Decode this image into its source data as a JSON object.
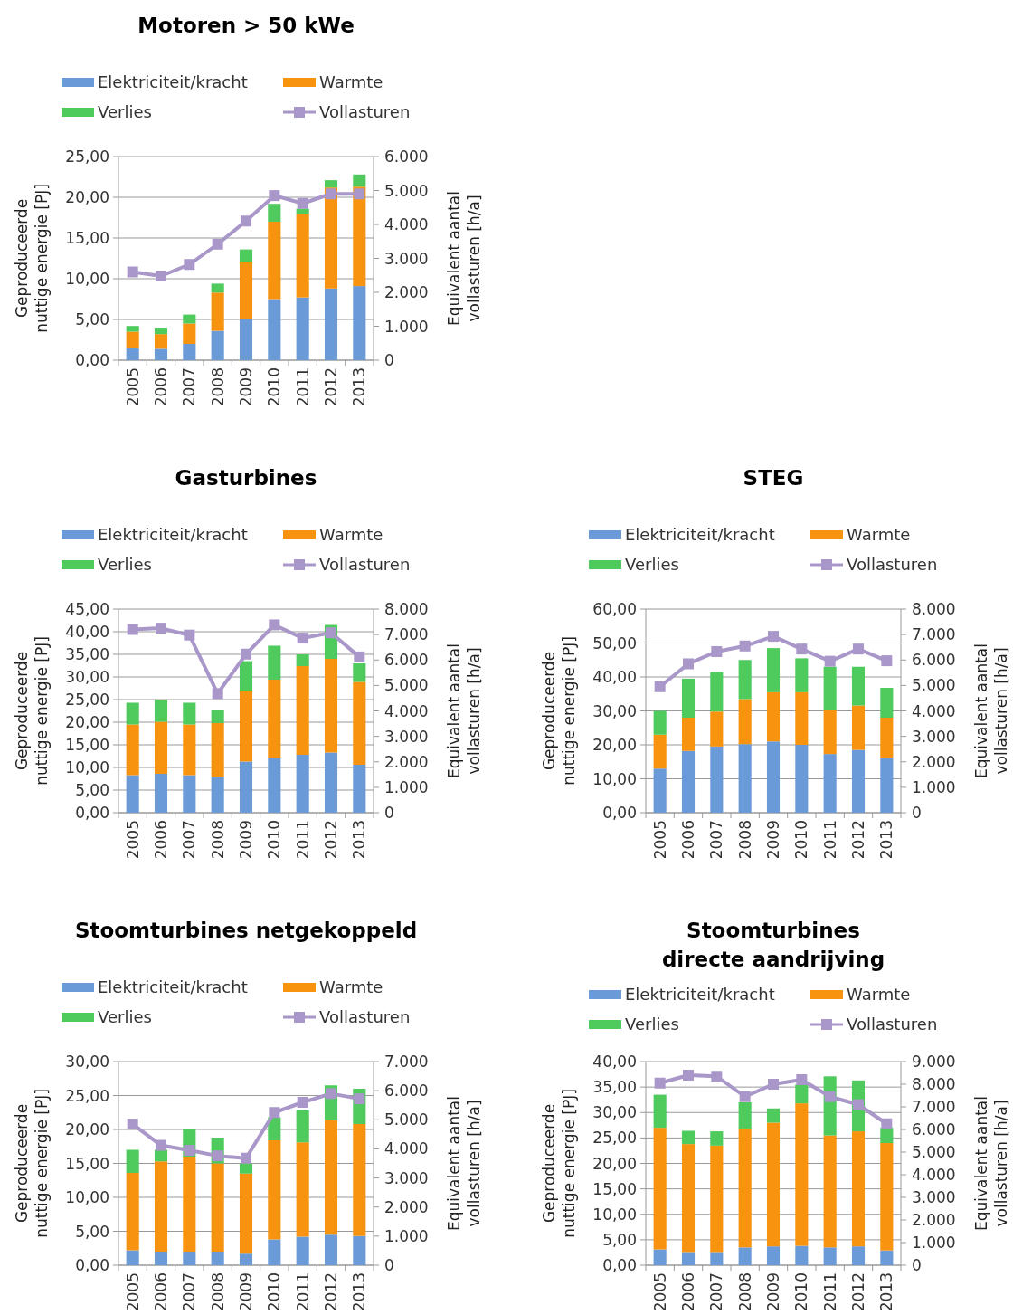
{
  "chart_data": [
    {
      "type": "bar",
      "stacked": true,
      "title": "Motoren > 50 kWe",
      "categories": [
        "2005",
        "2006",
        "2007",
        "2008",
        "2009",
        "2010",
        "2011",
        "2012",
        "2013"
      ],
      "ylabel": "Geproduceerde nuttige energie [PJ]",
      "y2label": "Equivalent aantal vollasturen [h/a]",
      "legend": "top",
      "grid": "y",
      "ylim": [
        0,
        25
      ],
      "yticks": [
        {
          "value": 0,
          "label": "0,00"
        },
        {
          "value": 5,
          "label": "5,00"
        },
        {
          "value": 10,
          "label": "10,00"
        },
        {
          "value": 15,
          "label": "15,00"
        },
        {
          "value": 20,
          "label": "20,00"
        },
        {
          "value": 25,
          "label": "25,00"
        }
      ],
      "y2lim": [
        0,
        6000
      ],
      "y2ticks": [
        {
          "value": 0,
          "label": "0"
        },
        {
          "value": 1000,
          "label": "1.000"
        },
        {
          "value": 2000,
          "label": "2.000"
        },
        {
          "value": 3000,
          "label": "3.000"
        },
        {
          "value": 4000,
          "label": "4.000"
        },
        {
          "value": 5000,
          "label": "5.000"
        },
        {
          "value": 6000,
          "label": "6.000"
        }
      ],
      "series": [
        {
          "name": "Elektriciteit/kracht",
          "color": "#6a9bd8",
          "values": [
            1.5,
            1.4,
            2.0,
            3.6,
            5.1,
            7.5,
            7.7,
            8.8,
            9.1
          ]
        },
        {
          "name": "Warmte",
          "color": "#f7930f",
          "values": [
            2.0,
            1.8,
            2.5,
            4.7,
            6.9,
            9.5,
            10.2,
            12.4,
            12.2
          ]
        },
        {
          "name": "Verlies",
          "color": "#4fca5c",
          "values": [
            0.7,
            0.8,
            1.1,
            1.1,
            1.6,
            2.2,
            0.7,
            0.9,
            1.5
          ]
        },
        {
          "name": "Vollasturen",
          "type": "line",
          "axis": "y2",
          "marker": "square",
          "color": "#a897c8",
          "values": [
            2600,
            2480,
            2820,
            3420,
            4100,
            4850,
            4620,
            4900,
            4900
          ]
        }
      ]
    },
    {
      "type": "bar",
      "stacked": true,
      "title": "Gasturbines",
      "categories": [
        "2005",
        "2006",
        "2007",
        "2008",
        "2009",
        "2010",
        "2011",
        "2012",
        "2013"
      ],
      "ylabel": "Geproduceerde nuttige energie [PJ]",
      "y2label": "Equivalent aantal vollasturen [h/a]",
      "legend": "top",
      "grid": "y",
      "ylim": [
        0,
        45
      ],
      "yticks": [
        {
          "value": 0,
          "label": "0,00"
        },
        {
          "value": 5,
          "label": "5,00"
        },
        {
          "value": 10,
          "label": "10,00"
        },
        {
          "value": 15,
          "label": "15,00"
        },
        {
          "value": 20,
          "label": "20,00"
        },
        {
          "value": 25,
          "label": "25,00"
        },
        {
          "value": 30,
          "label": "30,00"
        },
        {
          "value": 35,
          "label": "35,00"
        },
        {
          "value": 40,
          "label": "40,00"
        },
        {
          "value": 45,
          "label": "45,00"
        }
      ],
      "y2lim": [
        0,
        8000
      ],
      "y2ticks": [
        {
          "value": 0,
          "label": "0"
        },
        {
          "value": 1000,
          "label": "1.000"
        },
        {
          "value": 2000,
          "label": "2.000"
        },
        {
          "value": 3000,
          "label": "3.000"
        },
        {
          "value": 4000,
          "label": "4.000"
        },
        {
          "value": 5000,
          "label": "5.000"
        },
        {
          "value": 6000,
          "label": "6.000"
        },
        {
          "value": 7000,
          "label": "7.000"
        },
        {
          "value": 8000,
          "label": "8.000"
        }
      ],
      "series": [
        {
          "name": "Elektriciteit/kracht",
          "color": "#6a9bd8",
          "values": [
            8.3,
            8.6,
            8.3,
            7.8,
            11.3,
            12.1,
            12.8,
            13.3,
            10.6
          ]
        },
        {
          "name": "Warmte",
          "color": "#f7930f",
          "values": [
            11.2,
            11.5,
            11.2,
            12.0,
            15.6,
            17.3,
            19.6,
            20.7,
            18.3
          ]
        },
        {
          "name": "Verlies",
          "color": "#4fca5c",
          "values": [
            4.8,
            4.9,
            4.8,
            3.0,
            6.6,
            7.5,
            2.6,
            7.5,
            4.1
          ]
        },
        {
          "name": "Vollasturen",
          "type": "line",
          "axis": "y2",
          "marker": "square",
          "color": "#a897c8",
          "values": [
            7200,
            7250,
            6980,
            4680,
            6230,
            7380,
            6860,
            7070,
            6120
          ]
        }
      ]
    },
    {
      "type": "bar",
      "stacked": true,
      "title": "STEG",
      "categories": [
        "2005",
        "2006",
        "2007",
        "2008",
        "2009",
        "2010",
        "2011",
        "2012",
        "2013"
      ],
      "ylabel": "Geproduceerde nuttige energie [PJ]",
      "y2label": "Equivalent aantal vollasturen [h/a]",
      "legend": "top",
      "grid": "y",
      "ylim": [
        0,
        60
      ],
      "yticks": [
        {
          "value": 0,
          "label": "0,00"
        },
        {
          "value": 10,
          "label": "10,00"
        },
        {
          "value": 20,
          "label": "20,00"
        },
        {
          "value": 30,
          "label": "30,00"
        },
        {
          "value": 40,
          "label": "40,00"
        },
        {
          "value": 50,
          "label": "50,00"
        },
        {
          "value": 60,
          "label": "60,00"
        }
      ],
      "y2lim": [
        0,
        8000
      ],
      "y2ticks": [
        {
          "value": 0,
          "label": "0"
        },
        {
          "value": 1000,
          "label": "1.000"
        },
        {
          "value": 2000,
          "label": "2.000"
        },
        {
          "value": 3000,
          "label": "3.000"
        },
        {
          "value": 4000,
          "label": "4.000"
        },
        {
          "value": 5000,
          "label": "5.000"
        },
        {
          "value": 6000,
          "label": "6.000"
        },
        {
          "value": 7000,
          "label": "7.000"
        },
        {
          "value": 8000,
          "label": "8.000"
        }
      ],
      "series": [
        {
          "name": "Elektriciteit/kracht",
          "color": "#6a9bd8",
          "values": [
            13.0,
            18.2,
            19.5,
            20.2,
            21.0,
            20.0,
            17.3,
            18.5,
            16.0
          ]
        },
        {
          "name": "Warmte",
          "color": "#f7930f",
          "values": [
            10.0,
            9.8,
            10.3,
            13.3,
            14.5,
            15.5,
            13.1,
            13.1,
            12.0
          ]
        },
        {
          "name": "Verlies",
          "color": "#4fca5c",
          "values": [
            7.0,
            11.5,
            11.7,
            11.5,
            13.0,
            10.0,
            12.6,
            11.4,
            8.8
          ]
        },
        {
          "name": "Vollasturen",
          "type": "line",
          "axis": "y2",
          "marker": "square",
          "color": "#a897c8",
          "values": [
            4950,
            5850,
            6330,
            6550,
            6930,
            6430,
            5950,
            6430,
            5970
          ]
        }
      ]
    },
    {
      "type": "bar",
      "stacked": true,
      "title": "Stoomturbines  netgekoppeld",
      "categories": [
        "2005",
        "2006",
        "2007",
        "2008",
        "2009",
        "2010",
        "2011",
        "2012",
        "2013"
      ],
      "ylabel": "Geproduceerde nuttige energie [PJ]",
      "y2label": "Equivalent aantal vollasturen [h/a]",
      "legend": "top",
      "grid": "y",
      "ylim": [
        0,
        30
      ],
      "yticks": [
        {
          "value": 0,
          "label": "0,00"
        },
        {
          "value": 5,
          "label": "5,00"
        },
        {
          "value": 10,
          "label": "10,00"
        },
        {
          "value": 15,
          "label": "15,00"
        },
        {
          "value": 20,
          "label": "20,00"
        },
        {
          "value": 25,
          "label": "25,00"
        },
        {
          "value": 30,
          "label": "30,00"
        }
      ],
      "y2lim": [
        0,
        7000
      ],
      "y2ticks": [
        {
          "value": 0,
          "label": "0"
        },
        {
          "value": 1000,
          "label": "1.000"
        },
        {
          "value": 2000,
          "label": "2.000"
        },
        {
          "value": 3000,
          "label": "3.000"
        },
        {
          "value": 4000,
          "label": "4.000"
        },
        {
          "value": 5000,
          "label": "5.000"
        },
        {
          "value": 6000,
          "label": "6.000"
        },
        {
          "value": 7000,
          "label": "7.000"
        }
      ],
      "series": [
        {
          "name": "Elektriciteit/kracht",
          "color": "#6a9bd8",
          "values": [
            2.2,
            2.0,
            2.0,
            2.0,
            1.7,
            3.8,
            4.2,
            4.5,
            4.3
          ]
        },
        {
          "name": "Warmte",
          "color": "#f7930f",
          "values": [
            11.4,
            13.3,
            14.0,
            13.0,
            11.8,
            14.6,
            13.9,
            16.9,
            16.5
          ]
        },
        {
          "name": "Verlies",
          "color": "#4fca5c",
          "values": [
            3.4,
            1.7,
            4.0,
            3.8,
            1.5,
            3.4,
            4.7,
            5.1,
            5.2
          ]
        },
        {
          "name": "Vollasturen",
          "type": "line",
          "axis": "y2",
          "marker": "square",
          "color": "#a897c8",
          "values": [
            4850,
            4120,
            3950,
            3760,
            3680,
            5250,
            5600,
            5900,
            5720
          ]
        }
      ]
    },
    {
      "type": "bar",
      "stacked": true,
      "title": "Stoomturbines\ndirecte aandrijving",
      "categories": [
        "2005",
        "2006",
        "2007",
        "2008",
        "2009",
        "2010",
        "2011",
        "2012",
        "2013"
      ],
      "ylabel": "Geproduceerde nuttige energie [PJ]",
      "y2label": "Equivalent aantal vollasturen [h/a]",
      "legend": "top",
      "grid": "y",
      "ylim": [
        0,
        40
      ],
      "yticks": [
        {
          "value": 0,
          "label": "0,00"
        },
        {
          "value": 5,
          "label": "5,00"
        },
        {
          "value": 10,
          "label": "10,00"
        },
        {
          "value": 15,
          "label": "15,00"
        },
        {
          "value": 20,
          "label": "20,00"
        },
        {
          "value": 25,
          "label": "25,00"
        },
        {
          "value": 30,
          "label": "30,00"
        },
        {
          "value": 35,
          "label": "35,00"
        },
        {
          "value": 40,
          "label": "40,00"
        }
      ],
      "y2lim": [
        0,
        9000
      ],
      "y2ticks": [
        {
          "value": 0,
          "label": "0"
        },
        {
          "value": 1000,
          "label": "1.000"
        },
        {
          "value": 2000,
          "label": "2.000"
        },
        {
          "value": 3000,
          "label": "3.000"
        },
        {
          "value": 4000,
          "label": "4.000"
        },
        {
          "value": 5000,
          "label": "5.000"
        },
        {
          "value": 6000,
          "label": "6.000"
        },
        {
          "value": 7000,
          "label": "7.000"
        },
        {
          "value": 8000,
          "label": "8.000"
        },
        {
          "value": 9000,
          "label": "9.000"
        }
      ],
      "series": [
        {
          "name": "Elektriciteit/kracht",
          "color": "#6a9bd8",
          "values": [
            3.1,
            2.6,
            2.6,
            3.5,
            3.7,
            3.8,
            3.5,
            3.7,
            2.9
          ]
        },
        {
          "name": "Warmte",
          "color": "#f7930f",
          "values": [
            23.9,
            21.2,
            20.9,
            23.3,
            24.3,
            28.0,
            22.0,
            22.6,
            21.1
          ]
        },
        {
          "name": "Verlies",
          "color": "#4fca5c",
          "values": [
            6.5,
            2.6,
            2.8,
            5.2,
            2.8,
            3.7,
            11.6,
            10.0,
            3.0
          ]
        },
        {
          "name": "Vollasturen",
          "type": "line",
          "axis": "y2",
          "marker": "square",
          "color": "#a897c8",
          "values": [
            8050,
            8400,
            8350,
            7450,
            8000,
            8200,
            7450,
            7100,
            6250
          ]
        }
      ]
    }
  ]
}
